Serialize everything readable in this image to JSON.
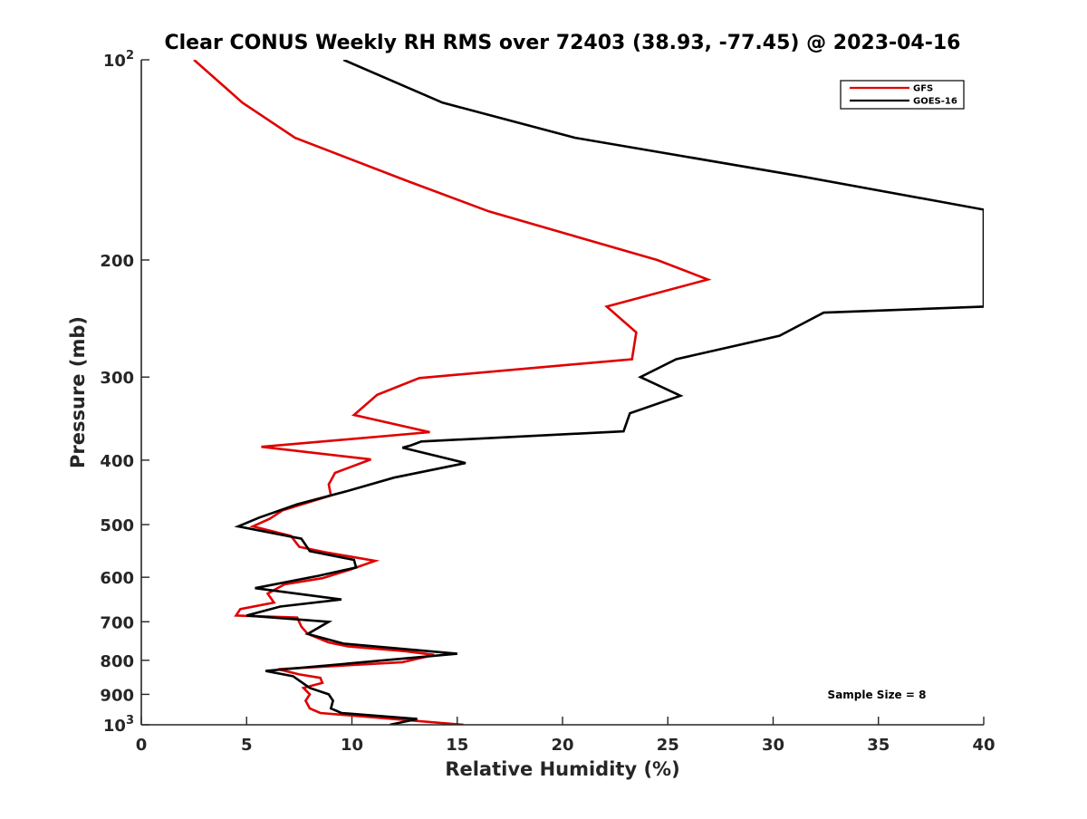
{
  "chart_data": {
    "type": "line",
    "title": "Clear CONUS Weekly RH RMS over 72403 (38.93, -77.45) @ 2023-04-16",
    "xlabel": "Relative Humidity (%)",
    "ylabel": "Pressure (mb)",
    "xlim": [
      0,
      40
    ],
    "ylim": [
      100,
      1000
    ],
    "y_scale": "log",
    "y_reversed": true,
    "grid": false,
    "legend_position": "top-right",
    "x_ticks": [
      0,
      5,
      10,
      15,
      20,
      25,
      30,
      35,
      40
    ],
    "x_tick_labels": [
      "0",
      "5",
      "10",
      "15",
      "20",
      "25",
      "30",
      "35",
      "40"
    ],
    "y_ticks": [
      100,
      200,
      300,
      400,
      500,
      600,
      700,
      800,
      900,
      1000
    ],
    "y_tick_labels": [
      {
        "base": "10",
        "sup": "2"
      },
      {
        "base": "200",
        "sup": ""
      },
      {
        "base": "300",
        "sup": ""
      },
      {
        "base": "400",
        "sup": ""
      },
      {
        "base": "500",
        "sup": ""
      },
      {
        "base": "600",
        "sup": ""
      },
      {
        "base": "700",
        "sup": ""
      },
      {
        "base": "800",
        "sup": ""
      },
      {
        "base": "900",
        "sup": ""
      },
      {
        "base": "10",
        "sup": "3"
      }
    ],
    "annotation": "Sample Size = 8",
    "series": [
      {
        "name": "GFS",
        "color": "#e00000",
        "points": [
          {
            "x": 2.5,
            "p": 100
          },
          {
            "x": 4.8,
            "p": 116
          },
          {
            "x": 7.3,
            "p": 131
          },
          {
            "x": 12.6,
            "p": 152
          },
          {
            "x": 16.5,
            "p": 169
          },
          {
            "x": 24.5,
            "p": 200
          },
          {
            "x": 26.9,
            "p": 214
          },
          {
            "x": 22.1,
            "p": 235
          },
          {
            "x": 23.5,
            "p": 257
          },
          {
            "x": 23.3,
            "p": 282
          },
          {
            "x": 13.2,
            "p": 301
          },
          {
            "x": 11.2,
            "p": 319
          },
          {
            "x": 10.1,
            "p": 342
          },
          {
            "x": 13.7,
            "p": 363
          },
          {
            "x": 5.7,
            "p": 382
          },
          {
            "x": 10.9,
            "p": 399
          },
          {
            "x": 9.2,
            "p": 418
          },
          {
            "x": 8.9,
            "p": 435
          },
          {
            "x": 9.0,
            "p": 452
          },
          {
            "x": 6.7,
            "p": 476
          },
          {
            "x": 6.1,
            "p": 490
          },
          {
            "x": 5.3,
            "p": 503
          },
          {
            "x": 7.1,
            "p": 520
          },
          {
            "x": 7.5,
            "p": 540
          },
          {
            "x": 8.7,
            "p": 550
          },
          {
            "x": 11.1,
            "p": 567
          },
          {
            "x": 9.8,
            "p": 586
          },
          {
            "x": 8.6,
            "p": 602
          },
          {
            "x": 6.8,
            "p": 615
          },
          {
            "x": 6.0,
            "p": 635
          },
          {
            "x": 6.3,
            "p": 655
          },
          {
            "x": 4.7,
            "p": 670
          },
          {
            "x": 4.5,
            "p": 685
          },
          {
            "x": 7.4,
            "p": 690
          },
          {
            "x": 7.6,
            "p": 712
          },
          {
            "x": 7.9,
            "p": 730
          },
          {
            "x": 8.9,
            "p": 752
          },
          {
            "x": 9.8,
            "p": 762
          },
          {
            "x": 12.5,
            "p": 775
          },
          {
            "x": 13.9,
            "p": 785
          },
          {
            "x": 12.4,
            "p": 805
          },
          {
            "x": 6.5,
            "p": 825
          },
          {
            "x": 7.5,
            "p": 840
          },
          {
            "x": 8.5,
            "p": 850
          },
          {
            "x": 8.6,
            "p": 865
          },
          {
            "x": 7.7,
            "p": 880
          },
          {
            "x": 8.0,
            "p": 900
          },
          {
            "x": 7.8,
            "p": 920
          },
          {
            "x": 8.0,
            "p": 945
          },
          {
            "x": 8.5,
            "p": 960
          },
          {
            "x": 15.3,
            "p": 1000
          }
        ]
      },
      {
        "name": "GOES-16",
        "color": "#000000",
        "points": [
          {
            "x": 9.6,
            "p": 100
          },
          {
            "x": 14.3,
            "p": 116
          },
          {
            "x": 20.6,
            "p": 131
          },
          {
            "x": 31.5,
            "p": 150
          },
          {
            "x": 40.0,
            "p": 168
          },
          {
            "x": 40.0,
            "p": 235
          },
          {
            "x": 32.4,
            "p": 240
          },
          {
            "x": 30.3,
            "p": 260
          },
          {
            "x": 25.4,
            "p": 282
          },
          {
            "x": 23.7,
            "p": 300
          },
          {
            "x": 25.6,
            "p": 320
          },
          {
            "x": 23.2,
            "p": 340
          },
          {
            "x": 22.9,
            "p": 362
          },
          {
            "x": 13.3,
            "p": 375
          },
          {
            "x": 12.8,
            "p": 380
          },
          {
            "x": 12.4,
            "p": 383
          },
          {
            "x": 15.4,
            "p": 404
          },
          {
            "x": 12.0,
            "p": 425
          },
          {
            "x": 9.8,
            "p": 445
          },
          {
            "x": 7.4,
            "p": 466
          },
          {
            "x": 5.6,
            "p": 488
          },
          {
            "x": 4.6,
            "p": 503
          },
          {
            "x": 7.6,
            "p": 525
          },
          {
            "x": 8.0,
            "p": 548
          },
          {
            "x": 10.1,
            "p": 565
          },
          {
            "x": 10.2,
            "p": 580
          },
          {
            "x": 8.4,
            "p": 597
          },
          {
            "x": 5.4,
            "p": 623
          },
          {
            "x": 9.5,
            "p": 648
          },
          {
            "x": 6.6,
            "p": 664
          },
          {
            "x": 5.0,
            "p": 685
          },
          {
            "x": 8.9,
            "p": 700
          },
          {
            "x": 7.9,
            "p": 730
          },
          {
            "x": 9.6,
            "p": 755
          },
          {
            "x": 15.0,
            "p": 782
          },
          {
            "x": 5.9,
            "p": 830
          },
          {
            "x": 7.2,
            "p": 845
          },
          {
            "x": 8.0,
            "p": 880
          },
          {
            "x": 8.9,
            "p": 900
          },
          {
            "x": 9.1,
            "p": 920
          },
          {
            "x": 9.0,
            "p": 945
          },
          {
            "x": 9.5,
            "p": 960
          },
          {
            "x": 13.1,
            "p": 980
          },
          {
            "x": 11.8,
            "p": 1000
          }
        ]
      }
    ]
  }
}
